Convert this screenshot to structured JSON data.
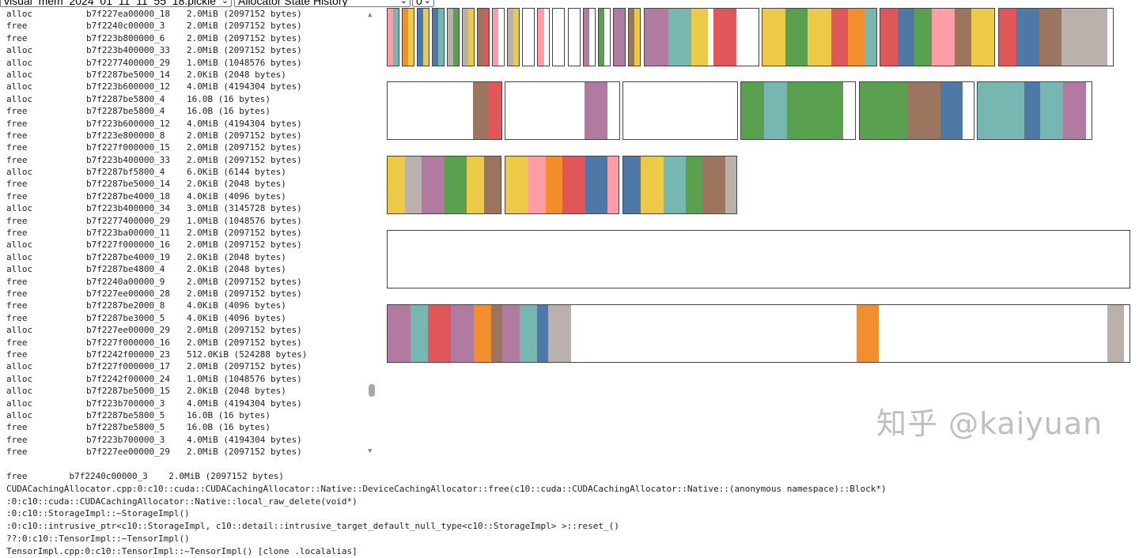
{
  "header": {
    "file_select": "visual_mem_2024_01_11_11_55_18.pickle",
    "view_select": "Allocator State History",
    "device_select": "0"
  },
  "palette": {
    "pink": "#ff9da7",
    "teal": "#76b7b2",
    "orange": "#f28e2b",
    "yellow": "#edc948",
    "blue": "#4e79a7",
    "gray": "#bab0ac",
    "green": "#59a14f",
    "brown": "#9c755f",
    "red": "#e15759",
    "purple": "#b07aa1",
    "free": "#ffffff"
  },
  "events": [
    {
      "action": "alloc",
      "addr": "b7f227ea00000_18",
      "size": "2.0MiB (2097152 bytes)"
    },
    {
      "action": "free",
      "addr": "b7f2240c00000_3",
      "size": "2.0MiB (2097152 bytes)"
    },
    {
      "action": "free",
      "addr": "b7f223b800000_6",
      "size": "2.0MiB (2097152 bytes)"
    },
    {
      "action": "alloc",
      "addr": "b7f223b400000_33",
      "size": "2.0MiB (2097152 bytes)"
    },
    {
      "action": "alloc",
      "addr": "b7f2277400000_29",
      "size": "1.0MiB (1048576 bytes)"
    },
    {
      "action": "alloc",
      "addr": "b7f2287be5000_14",
      "size": "2.0KiB (2048 bytes)"
    },
    {
      "action": "alloc",
      "addr": "b7f223b600000_12",
      "size": "4.0MiB (4194304 bytes)"
    },
    {
      "action": "alloc",
      "addr": "b7f2287be5800_4",
      "size": "16.0B (16 bytes)"
    },
    {
      "action": "free",
      "addr": "b7f2287be5800_4",
      "size": "16.0B (16 bytes)"
    },
    {
      "action": "free",
      "addr": "b7f223b600000_12",
      "size": "4.0MiB (4194304 bytes)"
    },
    {
      "action": "free",
      "addr": "b7f223e800000_8",
      "size": "2.0MiB (2097152 bytes)"
    },
    {
      "action": "free",
      "addr": "b7f227f000000_15",
      "size": "2.0MiB (2097152 bytes)"
    },
    {
      "action": "free",
      "addr": "b7f223b400000_33",
      "size": "2.0MiB (2097152 bytes)"
    },
    {
      "action": "alloc",
      "addr": "b7f2287bf5800_4",
      "size": "6.0KiB (6144 bytes)"
    },
    {
      "action": "free",
      "addr": "b7f2287be5000_14",
      "size": "2.0KiB (2048 bytes)"
    },
    {
      "action": "free",
      "addr": "b7f2287be4000_18",
      "size": "4.0KiB (4096 bytes)"
    },
    {
      "action": "alloc",
      "addr": "b7f223b400000_34",
      "size": "3.0MiB (3145728 bytes)"
    },
    {
      "action": "free",
      "addr": "b7f2277400000_29",
      "size": "1.0MiB (1048576 bytes)"
    },
    {
      "action": "free",
      "addr": "b7f223ba00000_11",
      "size": "2.0MiB (2097152 bytes)"
    },
    {
      "action": "alloc",
      "addr": "b7f227f000000_16",
      "size": "2.0MiB (2097152 bytes)"
    },
    {
      "action": "alloc",
      "addr": "b7f2287be4000_19",
      "size": "2.0KiB (2048 bytes)"
    },
    {
      "action": "alloc",
      "addr": "b7f2287be4800_4",
      "size": "2.0KiB (2048 bytes)"
    },
    {
      "action": "free",
      "addr": "b7f2240a00000_9",
      "size": "2.0MiB (2097152 bytes)"
    },
    {
      "action": "free",
      "addr": "b7f227ee00000_28",
      "size": "2.0MiB (2097152 bytes)"
    },
    {
      "action": "free",
      "addr": "b7f2287be2000_8",
      "size": "4.0KiB (4096 bytes)"
    },
    {
      "action": "free",
      "addr": "b7f2287be3000_5",
      "size": "4.0KiB (4096 bytes)"
    },
    {
      "action": "alloc",
      "addr": "b7f227ee00000_29",
      "size": "2.0MiB (2097152 bytes)"
    },
    {
      "action": "free",
      "addr": "b7f227f000000_16",
      "size": "2.0MiB (2097152 bytes)"
    },
    {
      "action": "free",
      "addr": "b7f2242f00000_23",
      "size": "512.0KiB (524288 bytes)"
    },
    {
      "action": "alloc",
      "addr": "b7f227f000000_17",
      "size": "2.0MiB (2097152 bytes)"
    },
    {
      "action": "alloc",
      "addr": "b7f2242f00000_24",
      "size": "1.0MiB (1048576 bytes)"
    },
    {
      "action": "alloc",
      "addr": "b7f2287be5000_15",
      "size": "2.0KiB (2048 bytes)"
    },
    {
      "action": "alloc",
      "addr": "b7f223b700000_3",
      "size": "4.0MiB (4194304 bytes)"
    },
    {
      "action": "alloc",
      "addr": "b7f2287be5800_5",
      "size": "16.0B (16 bytes)"
    },
    {
      "action": "free",
      "addr": "b7f2287be5800_5",
      "size": "16.0B (16 bytes)"
    },
    {
      "action": "free",
      "addr": "b7f223b700000_3",
      "size": "4.0MiB (4194304 bytes)"
    },
    {
      "action": "free",
      "addr": "b7f227ee00000_29",
      "size": "2.0MiB (2097152 bytes)"
    }
  ],
  "selected": {
    "summary": "free        b7f2240c00000_3    2.0MiB (2097152 bytes)",
    "trace": [
      "CUDACachingAllocator.cpp:0:c10::cuda::CUDACachingAllocator::Native::DeviceCachingAllocator::free(c10::cuda::CUDACachingAllocator::Native::(anonymous namespace)::Block*)",
      ":0:c10::cuda::CUDACachingAllocator::Native::local_raw_delete(void*)",
      ":0:c10::StorageImpl::~StorageImpl()",
      ":0:c10::intrusive_ptr<c10::StorageImpl, c10::detail::intrusive_target_default_null_type<c10::StorageImpl> >::reset_()",
      "??:0:c10::TensorImpl::~TensorImpl()",
      "TensorImpl.cpp:0:c10::TensorImpl::~TensorImpl() [clone .localalias]"
    ]
  },
  "segments": [
    [
      [
        "pink",
        1
      ],
      [
        "teal",
        1
      ]
    ],
    [
      [
        "orange",
        1
      ],
      [
        "yellow",
        1
      ]
    ],
    [
      [
        "blue",
        1
      ],
      [
        "yellow",
        1
      ]
    ],
    [
      [
        "blue",
        1
      ],
      [
        "teal",
        1
      ]
    ],
    [
      [
        "gray",
        1
      ],
      [
        "green",
        1
      ]
    ],
    [
      [
        "gray",
        1
      ],
      [
        "yellow",
        1
      ]
    ],
    [
      [
        "brown",
        1
      ],
      [
        "red",
        1
      ]
    ],
    [
      [
        "pink",
        1
      ],
      [
        "free",
        1
      ]
    ],
    [
      [
        "gray",
        1
      ],
      [
        "yellow",
        1
      ]
    ],
    [
      [
        "free",
        2
      ]
    ],
    [
      [
        "pink",
        1.2
      ],
      [
        "free",
        0.8
      ]
    ],
    [
      [
        "free",
        2
      ]
    ],
    [
      [
        "free",
        2
      ]
    ],
    [
      [
        "purple",
        1
      ],
      [
        "free",
        1
      ]
    ],
    [
      [
        "green",
        1
      ],
      [
        "free",
        1
      ]
    ],
    [
      [
        "purple",
        2
      ]
    ],
    [
      [
        "brown",
        1
      ],
      [
        "yellow",
        1
      ]
    ],
    [
      [
        "purple",
        30
      ],
      [
        "teal",
        29
      ],
      [
        "yellow",
        22
      ],
      [
        "free",
        7
      ],
      [
        "red",
        29
      ],
      [
        "free",
        28
      ]
    ],
    [
      [
        "yellow",
        29
      ],
      [
        "green",
        28
      ],
      [
        "yellow",
        29
      ],
      [
        "red",
        21
      ],
      [
        "orange",
        22
      ],
      [
        "teal",
        14
      ]
    ],
    [
      [
        "red",
        22
      ],
      [
        "blue",
        21
      ],
      [
        "green",
        22
      ],
      [
        "pink",
        29
      ],
      [
        "brown",
        21
      ],
      [
        "yellow",
        29
      ]
    ],
    [
      [
        "red",
        22
      ],
      [
        "blue",
        29
      ],
      [
        "brown",
        29
      ],
      [
        "gray",
        58
      ],
      [
        "free",
        7
      ]
    ],
    [
      [
        "free",
        108
      ],
      [
        "brown",
        20
      ],
      [
        "red",
        16
      ]
    ],
    [
      [
        "free",
        100
      ],
      [
        "purple",
        29
      ],
      [
        "free",
        15
      ]
    ],
    [
      [
        "free",
        144
      ]
    ],
    [
      [
        "green",
        29
      ],
      [
        "teal",
        29
      ],
      [
        "green",
        72
      ],
      [
        "free",
        15
      ]
    ],
    [
      [
        "green",
        60
      ],
      [
        "brown",
        43
      ],
      [
        "blue",
        28
      ],
      [
        "free",
        14
      ]
    ],
    [
      [
        "teal",
        59
      ],
      [
        "blue",
        21
      ],
      [
        "teal",
        29
      ],
      [
        "purple",
        29
      ],
      [
        "free",
        7
      ]
    ],
    [
      [
        "yellow",
        22
      ],
      [
        "gray",
        21
      ],
      [
        "purple",
        29
      ],
      [
        "green",
        29
      ],
      [
        "yellow",
        22
      ],
      [
        "brown",
        21
      ]
    ],
    [
      [
        "yellow",
        29
      ],
      [
        "pink",
        22
      ],
      [
        "orange",
        22
      ],
      [
        "red",
        29
      ],
      [
        "blue",
        28
      ],
      [
        "pink",
        14
      ]
    ],
    [
      [
        "blue",
        22
      ],
      [
        "yellow",
        29
      ],
      [
        "teal",
        29
      ],
      [
        "green",
        21
      ],
      [
        "brown",
        29
      ],
      [
        "gray",
        14
      ]
    ],
    [
      [
        "free",
        1
      ]
    ],
    [
      [
        "purple",
        29
      ],
      [
        "teal",
        22
      ],
      [
        "red",
        29
      ],
      [
        "purple",
        29
      ],
      [
        "orange",
        22
      ],
      [
        "brown",
        14
      ],
      [
        "purple",
        22
      ],
      [
        "teal",
        22
      ],
      [
        "blue",
        14
      ],
      [
        "gray",
        29
      ],
      [
        "free",
        362
      ],
      [
        "orange",
        28
      ],
      [
        "free",
        290
      ],
      [
        "gray",
        21
      ],
      [
        "free",
        7
      ]
    ]
  ],
  "watermark": "知乎 @kaiyuan"
}
